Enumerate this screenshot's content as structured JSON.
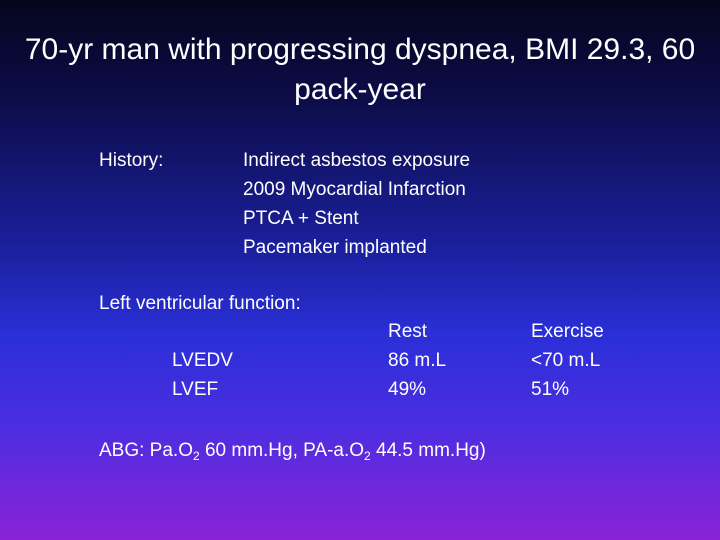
{
  "title": "70-yr man with progressing dyspnea, BMI 29.3, 60 pack-year",
  "history": {
    "label": "History:",
    "items": [
      "Indirect asbestos exposure",
      "2009 Myocardial Infarction",
      "PTCA + Stent",
      "Pacemaker implanted"
    ]
  },
  "lv_function": {
    "label": "Left ventricular function:",
    "rows": [
      "LVEDV",
      "LVEF"
    ],
    "rest": {
      "header": "Rest",
      "values": [
        "86 m.L",
        "49%"
      ]
    },
    "exercise": {
      "header": "Exercise",
      "values": [
        "<70 m.L",
        "51%"
      ]
    }
  },
  "abg": {
    "prefix": "ABG: Pa.O",
    "sub1": "2",
    "middle": " 60 mm.Hg, PA-a.O",
    "sub2": "2",
    "suffix": " 44.5 mm.Hg)"
  }
}
